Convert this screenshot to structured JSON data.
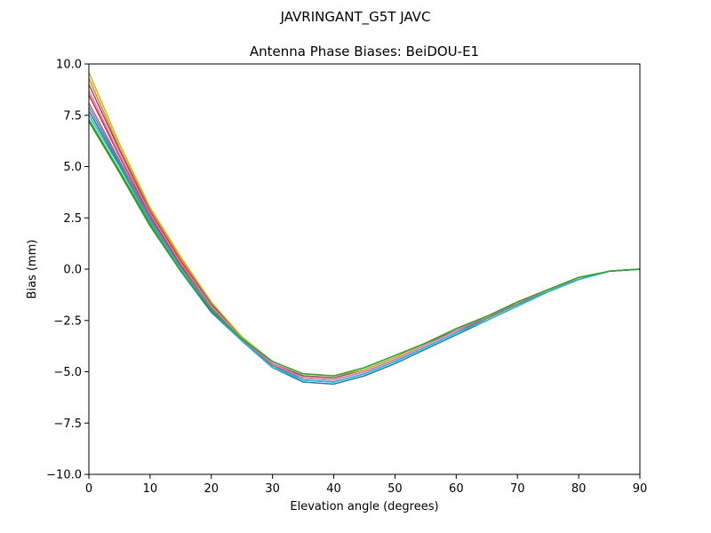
{
  "chart_data": {
    "type": "line",
    "suptitle": "JAVRINGANT_G5T  JAVC",
    "title": "Antenna Phase Biases: BeiDOU-E1",
    "xlabel": "Elevation angle (degrees)",
    "ylabel": "Bias (mm)",
    "xlim": [
      0,
      90
    ],
    "ylim": [
      -10,
      10
    ],
    "grid": false,
    "legend": "none",
    "x": [
      0,
      5,
      10,
      15,
      20,
      25,
      30,
      35,
      40,
      45,
      50,
      55,
      60,
      65,
      70,
      75,
      80,
      85,
      90
    ],
    "xtick_labels": [
      "0",
      "10",
      "20",
      "30",
      "40",
      "50",
      "60",
      "70",
      "80",
      "90"
    ],
    "ytick_labels": [
      "10.0",
      "7.5",
      "5.0",
      "2.5",
      "0.0",
      "−2.5",
      "−5.0",
      "−7.5",
      "−10.0"
    ],
    "series": [
      {
        "color": "#1f77b4",
        "values": [
          7.7,
          5.1,
          2.3,
          -0.1,
          -2.1,
          -3.5,
          -4.8,
          -5.5,
          -5.6,
          -5.2,
          -4.6,
          -3.9,
          -3.2,
          -2.5,
          -1.8,
          -1.1,
          -0.5,
          -0.1,
          0.0
        ]
      },
      {
        "color": "#ff7f0e",
        "values": [
          9.3,
          5.9,
          2.9,
          0.5,
          -1.7,
          -3.4,
          -4.6,
          -5.2,
          -5.3,
          -4.9,
          -4.3,
          -3.6,
          -2.9,
          -2.3,
          -1.6,
          -1.0,
          -0.5,
          -0.1,
          0.0
        ]
      },
      {
        "color": "#2ca02c",
        "values": [
          7.3,
          4.8,
          2.2,
          0.0,
          -2.0,
          -3.5,
          -4.7,
          -5.4,
          -5.5,
          -5.1,
          -4.5,
          -3.8,
          -3.1,
          -2.4,
          -1.7,
          -1.1,
          -0.5,
          -0.1,
          0.0
        ]
      },
      {
        "color": "#d62728",
        "values": [
          8.5,
          5.5,
          2.6,
          0.2,
          -1.8,
          -3.4,
          -4.6,
          -5.3,
          -5.4,
          -5.0,
          -4.4,
          -3.7,
          -3.0,
          -2.3,
          -1.7,
          -1.0,
          -0.5,
          -0.1,
          0.0
        ]
      },
      {
        "color": "#9467bd",
        "values": [
          8.1,
          5.3,
          2.5,
          0.1,
          -1.9,
          -3.4,
          -4.7,
          -5.3,
          -5.4,
          -5.0,
          -4.4,
          -3.7,
          -3.0,
          -2.4,
          -1.7,
          -1.1,
          -0.5,
          -0.1,
          0.0
        ]
      },
      {
        "color": "#8c564b",
        "values": [
          9.0,
          5.8,
          2.8,
          0.4,
          -1.7,
          -3.3,
          -4.6,
          -5.2,
          -5.3,
          -4.9,
          -4.3,
          -3.6,
          -3.0,
          -2.3,
          -1.6,
          -1.0,
          -0.5,
          -0.1,
          0.0
        ]
      },
      {
        "color": "#e377c2",
        "values": [
          8.7,
          5.6,
          2.7,
          0.3,
          -1.8,
          -3.4,
          -4.6,
          -5.3,
          -5.4,
          -5.0,
          -4.4,
          -3.7,
          -3.0,
          -2.3,
          -1.7,
          -1.0,
          -0.5,
          -0.1,
          0.0
        ]
      },
      {
        "color": "#7f7f7f",
        "values": [
          7.9,
          5.2,
          2.4,
          0.1,
          -1.9,
          -3.5,
          -4.7,
          -5.4,
          -5.5,
          -5.1,
          -4.5,
          -3.8,
          -3.1,
          -2.4,
          -1.7,
          -1.1,
          -0.5,
          -0.1,
          0.0
        ]
      },
      {
        "color": "#bcbd22",
        "values": [
          9.6,
          6.1,
          3.0,
          0.6,
          -1.6,
          -3.3,
          -4.5,
          -5.1,
          -5.2,
          -4.9,
          -4.3,
          -3.6,
          -2.9,
          -2.3,
          -1.6,
          -1.0,
          -0.4,
          -0.1,
          0.0
        ]
      },
      {
        "color": "#17becf",
        "values": [
          7.5,
          5.0,
          2.3,
          0.0,
          -2.0,
          -3.5,
          -4.8,
          -5.4,
          -5.5,
          -5.1,
          -4.5,
          -3.8,
          -3.1,
          -2.5,
          -1.8,
          -1.1,
          -0.5,
          -0.1,
          0.0
        ]
      },
      {
        "color": "#2ca02c",
        "values": [
          7.2,
          4.7,
          2.1,
          -0.1,
          -2.0,
          -3.4,
          -4.5,
          -5.1,
          -5.2,
          -4.8,
          -4.2,
          -3.6,
          -2.9,
          -2.3,
          -1.6,
          -1.0,
          -0.4,
          -0.1,
          0.0
        ]
      }
    ]
  }
}
